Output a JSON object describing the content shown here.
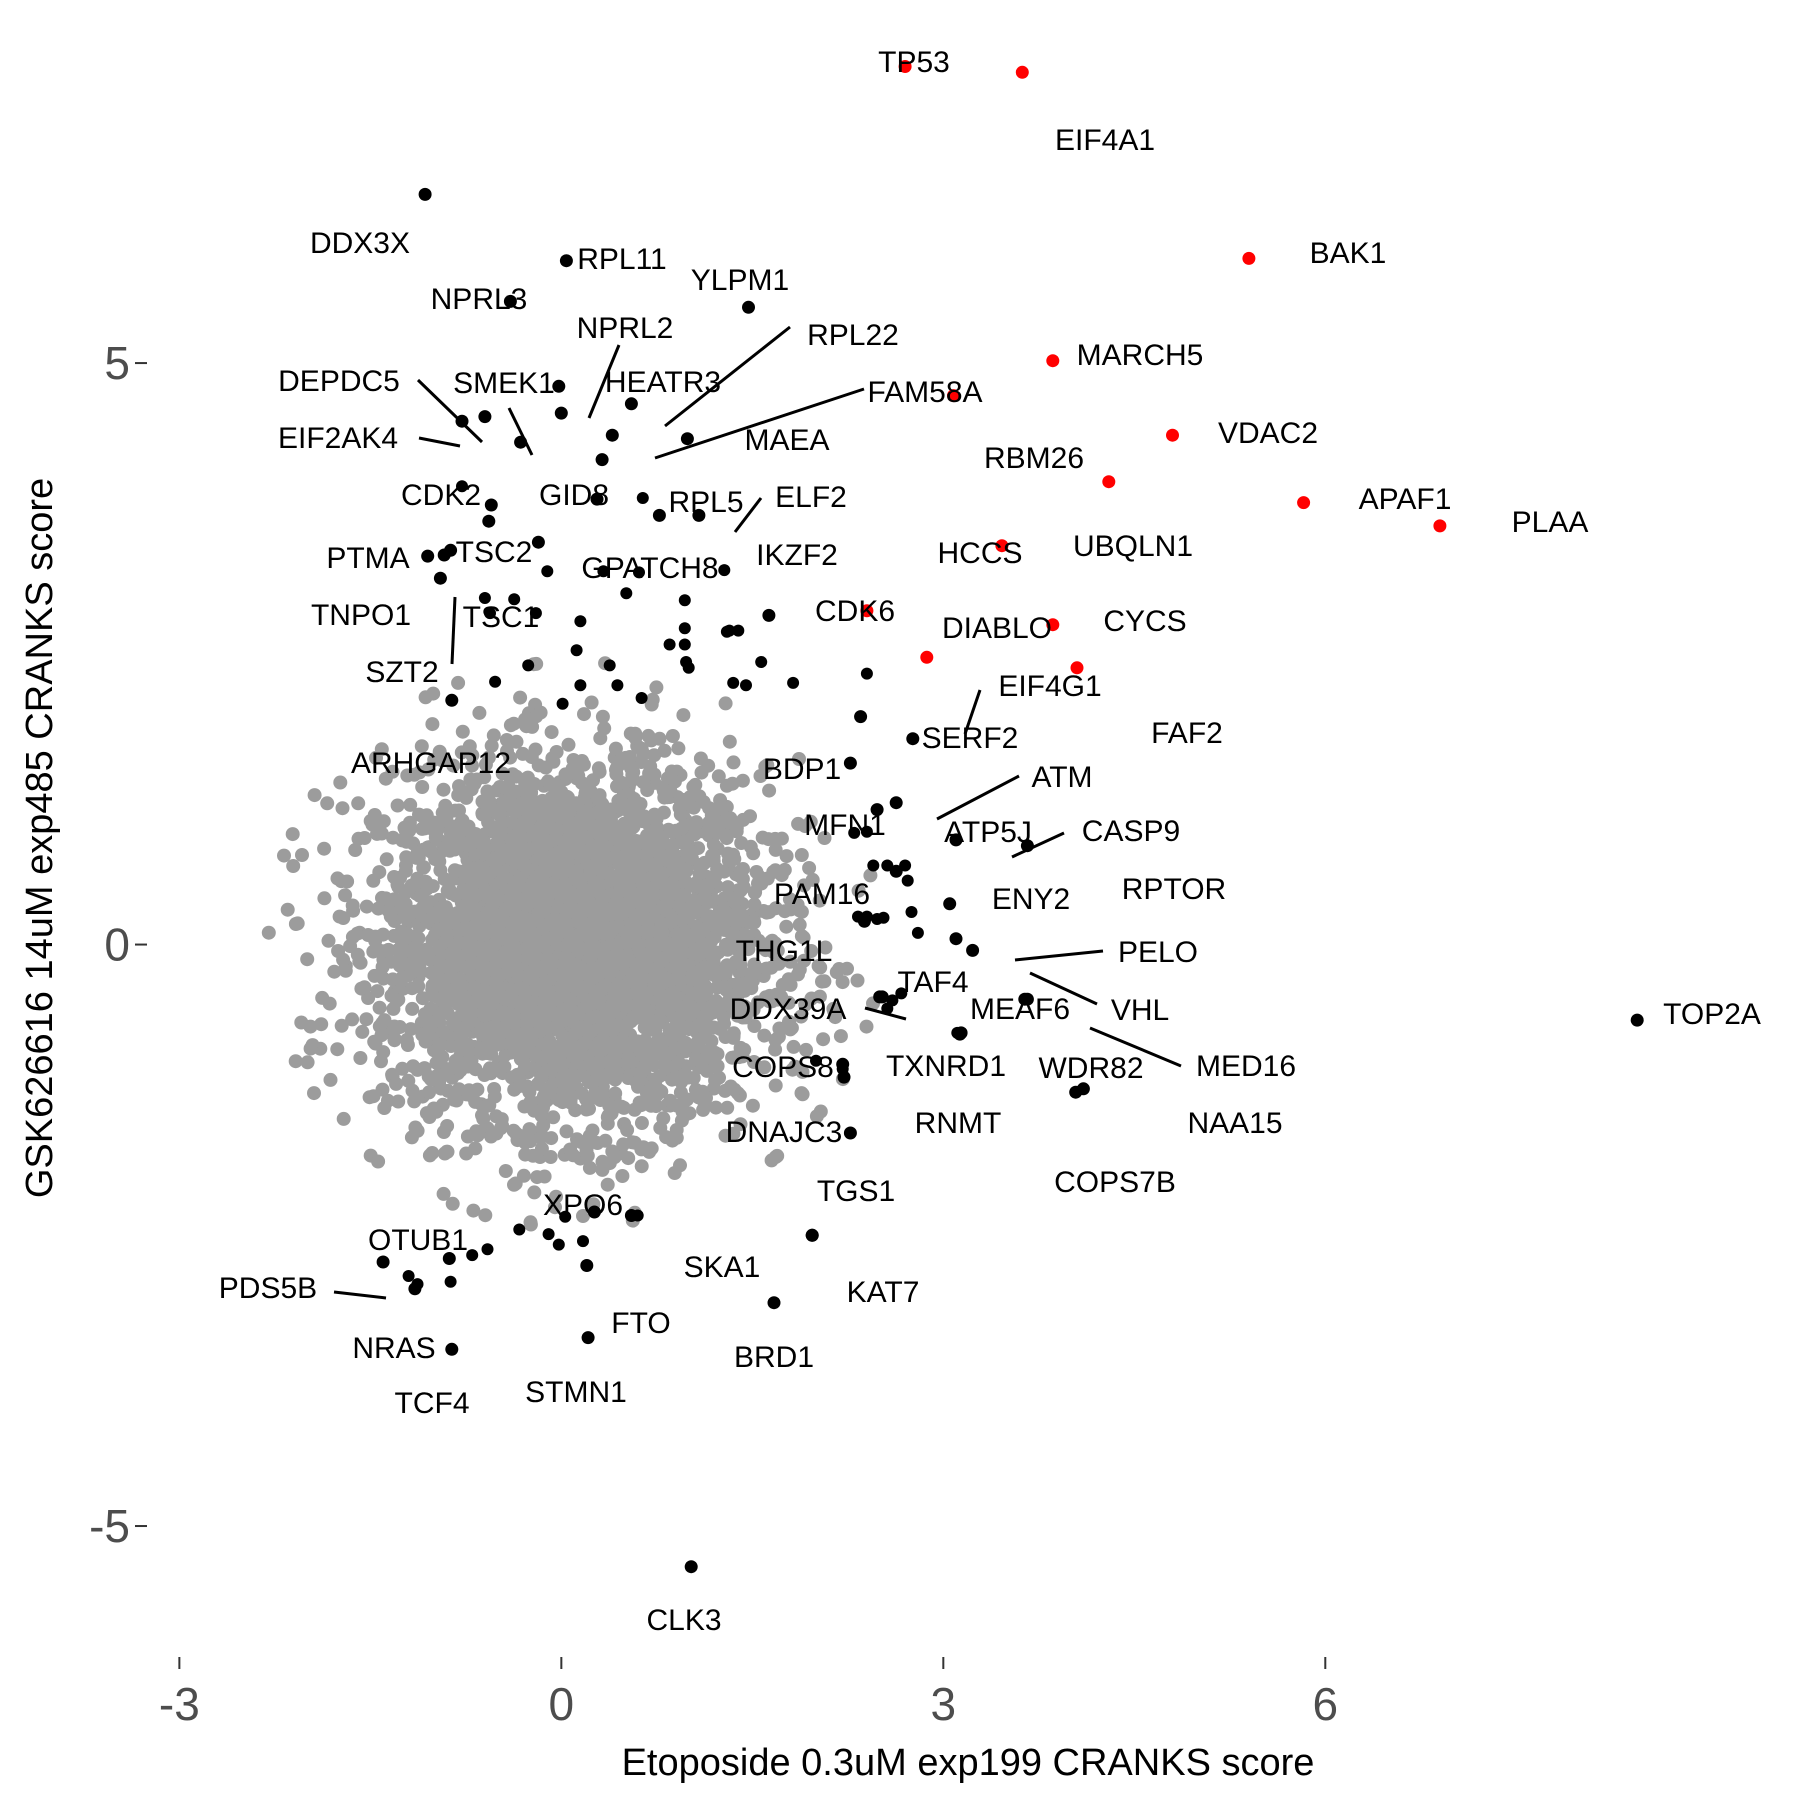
{
  "chart_data": {
    "type": "scatter",
    "title": "",
    "xlabel": "Etoposide 0.3uM exp199 CRANKS score",
    "ylabel": "GSK626616 14uM exp485 CRANKS score",
    "xlim": [
      -3.05,
      9.1
    ],
    "ylim": [
      -5.98,
      7.95
    ],
    "xticks": [
      -3,
      0,
      3,
      6
    ],
    "yticks": [
      -5,
      0,
      5
    ],
    "xtick_labels": [
      "-3",
      "0",
      "3",
      "6"
    ],
    "ytick_labels": [
      "-5",
      "0",
      "5"
    ],
    "grid": false,
    "legend": "none",
    "colors": {
      "background": "#d9d9d9",
      "hit": "#ff0000",
      "labeled": "#000000",
      "axis_text": "#4d4d4d"
    },
    "background_cloud": {
      "count": 4200,
      "color": "#9c9c9c",
      "center": [
        0.1,
        0.0
      ],
      "sd": [
        0.5,
        0.4
      ]
    },
    "points": [
      {
        "gene": "TP53",
        "x": 2.7,
        "y": 7.55,
        "color": "#ff0000"
      },
      {
        "gene": "EIF4A1",
        "x": 3.62,
        "y": 7.5,
        "color": "#ff0000"
      },
      {
        "gene": "BAK1",
        "x": 5.4,
        "y": 5.9,
        "color": "#ff0000"
      },
      {
        "gene": "MARCH5",
        "x": 3.86,
        "y": 5.02,
        "color": "#ff0000"
      },
      {
        "gene": "RBM26",
        "x": 3.08,
        "y": 4.72,
        "color": "#ff0000"
      },
      {
        "gene": "VDAC2",
        "x": 4.8,
        "y": 4.38,
        "color": "#ff0000"
      },
      {
        "gene": "UBQLN1",
        "x": 4.3,
        "y": 3.98,
        "color": "#ff0000"
      },
      {
        "gene": "APAF1",
        "x": 5.83,
        "y": 3.8,
        "color": "#ff0000"
      },
      {
        "gene": "PLAA",
        "x": 6.9,
        "y": 3.6,
        "color": "#ff0000"
      },
      {
        "gene": "HCCS",
        "x": 3.46,
        "y": 3.43,
        "color": "#ff0000"
      },
      {
        "gene": "DIABLO",
        "x": 2.4,
        "y": 2.87,
        "color": "#ff0000"
      },
      {
        "gene": "CYCS",
        "x": 3.86,
        "y": 2.75,
        "color": "#ff0000"
      },
      {
        "gene": "EIF4G1",
        "x": 2.87,
        "y": 2.47,
        "color": "#ff0000"
      },
      {
        "gene": "FAF2",
        "x": 4.05,
        "y": 2.38,
        "color": "#ff0000"
      },
      {
        "gene": "TOP2A",
        "x": 8.45,
        "y": -0.65,
        "color": "#000000"
      },
      {
        "gene": "DDX3X",
        "x": -1.07,
        "y": 6.45,
        "color": "#000000"
      },
      {
        "gene": "RPL11",
        "x": 0.04,
        "y": 5.88,
        "color": "#000000"
      },
      {
        "gene": "NPRL3",
        "x": -0.4,
        "y": 5.53,
        "color": "#000000"
      },
      {
        "gene": "RPL22",
        "x": 1.47,
        "y": 5.48,
        "color": "#000000"
      },
      {
        "gene": "NPRL2",
        "x": -0.02,
        "y": 4.8,
        "color": "#000000"
      },
      {
        "gene": "HEATR3",
        "x": 0.0,
        "y": 4.57,
        "color": "#000000"
      },
      {
        "gene": "YLPM1",
        "x": 0.55,
        "y": 4.65,
        "color": "#000000"
      },
      {
        "gene": "DEPDC5",
        "x": -0.78,
        "y": 4.5,
        "color": "#000000"
      },
      {
        "gene": "EIF2AK4",
        "x": -0.6,
        "y": 4.54,
        "color": "#000000"
      },
      {
        "gene": "FAM58A",
        "x": 0.4,
        "y": 4.38,
        "color": "#000000"
      },
      {
        "gene": "MAEA",
        "x": 0.99,
        "y": 4.35,
        "color": "#000000"
      },
      {
        "gene": "SMEK1",
        "x": -0.32,
        "y": 4.32,
        "color": "#000000"
      },
      {
        "gene": "GID8",
        "x": 0.32,
        "y": 4.17,
        "color": "#000000"
      },
      {
        "gene": "CDK2",
        "x": -0.55,
        "y": 3.78,
        "color": "#000000"
      },
      {
        "gene": "RPL5",
        "x": 0.28,
        "y": 3.83,
        "color": "#000000"
      },
      {
        "gene": "ELF2",
        "x": 1.08,
        "y": 3.69,
        "color": "#000000"
      },
      {
        "gene": "TSC2",
        "x": -0.57,
        "y": 3.64,
        "color": "#000000"
      },
      {
        "gene": "IKZF2",
        "x": 0.77,
        "y": 3.69,
        "color": "#000000"
      },
      {
        "gene": "PTMA",
        "x": -1.05,
        "y": 3.34,
        "color": "#000000"
      },
      {
        "gene": "TNPO1",
        "x": -0.87,
        "y": 3.39,
        "color": "#000000"
      },
      {
        "gene": "GPATCH8",
        "x": -0.18,
        "y": 3.46,
        "color": "#000000"
      },
      {
        "gene": "TSC1",
        "x": -0.92,
        "y": 3.35,
        "color": "#000000"
      },
      {
        "gene": "SZT2",
        "x": -0.95,
        "y": 3.15,
        "color": "#000000"
      },
      {
        "gene": "CDK6",
        "x": 1.63,
        "y": 2.83,
        "color": "#000000"
      },
      {
        "gene": "ARHGAP12",
        "x": -0.86,
        "y": 2.1,
        "color": "#000000"
      },
      {
        "gene": "SERF2",
        "x": 2.35,
        "y": 1.96,
        "color": "#000000"
      },
      {
        "gene": "BDP1",
        "x": 2.76,
        "y": 1.77,
        "color": "#000000"
      },
      {
        "gene": "ATM",
        "x": 2.27,
        "y": 1.56,
        "color": "#000000"
      },
      {
        "gene": "MFN1",
        "x": 2.48,
        "y": 1.16,
        "color": "#000000"
      },
      {
        "gene": "ATP5J",
        "x": 2.63,
        "y": 1.22,
        "color": "#000000"
      },
      {
        "gene": "CASP9",
        "x": 3.1,
        "y": 0.9,
        "color": "#000000"
      },
      {
        "gene": "RPTOR",
        "x": 3.66,
        "y": 0.85,
        "color": "#000000"
      },
      {
        "gene": "PAM16",
        "x": 2.63,
        "y": 0.63,
        "color": "#000000"
      },
      {
        "gene": "ENY2",
        "x": 3.05,
        "y": 0.35,
        "color": "#000000"
      },
      {
        "gene": "THG1L",
        "x": 2.38,
        "y": 0.2,
        "color": "#000000"
      },
      {
        "gene": "PELO",
        "x": 3.1,
        "y": 0.05,
        "color": "#000000"
      },
      {
        "gene": "TAF4",
        "x": 2.52,
        "y": -0.45,
        "color": "#000000"
      },
      {
        "gene": "VHL",
        "x": 3.23,
        "y": -0.05,
        "color": "#000000"
      },
      {
        "gene": "DDX39A",
        "x": 2.5,
        "y": -0.45,
        "color": "#000000"
      },
      {
        "gene": "MEAF6",
        "x": 3.64,
        "y": -0.47,
        "color": "#000000"
      },
      {
        "gene": "MED16",
        "x": 3.66,
        "y": -0.47,
        "color": "#000000"
      },
      {
        "gene": "TXNRD1",
        "x": 3.13,
        "y": -0.77,
        "color": "#000000"
      },
      {
        "gene": "WDR82",
        "x": 3.14,
        "y": -0.76,
        "color": "#000000"
      },
      {
        "gene": "COPS8",
        "x": 2.21,
        "y": -1.03,
        "color": "#000000"
      },
      {
        "gene": "NAA15",
        "x": 4.1,
        "y": -1.24,
        "color": "#000000"
      },
      {
        "gene": "RNMT",
        "x": 2.22,
        "y": -1.14,
        "color": "#000000"
      },
      {
        "gene": "COPS7B",
        "x": 4.04,
        "y": -1.27,
        "color": "#000000"
      },
      {
        "gene": "DNAJC3",
        "x": 2.27,
        "y": -1.62,
        "color": "#000000"
      },
      {
        "gene": "TGS1",
        "x": 1.97,
        "y": -2.5,
        "color": "#000000"
      },
      {
        "gene": "XPO6",
        "x": 0.26,
        "y": -2.3,
        "color": "#000000"
      },
      {
        "gene": "OTUB1",
        "x": -0.88,
        "y": -2.7,
        "color": "#000000"
      },
      {
        "gene": "SKA1",
        "x": 0.55,
        "y": -2.33,
        "color": "#000000"
      },
      {
        "gene": "PDS5B",
        "x": -1.4,
        "y": -2.73,
        "color": "#000000"
      },
      {
        "gene": "KAT7",
        "x": 1.97,
        "y": -2.5,
        "color": "#000000"
      },
      {
        "gene": "FTO",
        "x": 0.2,
        "y": -2.76,
        "color": "#000000"
      },
      {
        "gene": "NRAS",
        "x": -1.15,
        "y": -2.96,
        "color": "#000000"
      },
      {
        "gene": "BRD1",
        "x": 1.67,
        "y": -3.08,
        "color": "#000000"
      },
      {
        "gene": "STMN1",
        "x": 0.21,
        "y": -3.38,
        "color": "#000000"
      },
      {
        "gene": "TCF4",
        "x": -0.86,
        "y": -3.48,
        "color": "#000000"
      },
      {
        "gene": "CLK3",
        "x": 1.02,
        "y": -5.35,
        "color": "#000000"
      }
    ],
    "extra_black_points": [
      [
        -0.78,
        3.94
      ],
      [
        0.64,
        3.84
      ],
      [
        1.28,
        3.22
      ],
      [
        -0.11,
        3.21
      ],
      [
        0.33,
        3.21
      ],
      [
        0.61,
        3.2
      ],
      [
        0.51,
        3.02
      ],
      [
        0.97,
        2.96
      ],
      [
        1.3,
        2.69
      ],
      [
        0.97,
        2.72
      ],
      [
        0.97,
        2.58
      ],
      [
        0.85,
        2.58
      ],
      [
        0.98,
        2.43
      ],
      [
        1.0,
        2.38
      ],
      [
        1.32,
        2.7
      ],
      [
        1.39,
        2.7
      ],
      [
        0.15,
        2.78
      ],
      [
        0.12,
        2.53
      ],
      [
        0.38,
        2.4
      ],
      [
        -0.26,
        2.4
      ],
      [
        -0.56,
        2.85
      ],
      [
        -0.6,
        2.98
      ],
      [
        -0.37,
        2.97
      ],
      [
        -0.2,
        2.85
      ],
      [
        -0.52,
        2.26
      ],
      [
        0.15,
        2.23
      ],
      [
        0.44,
        2.23
      ],
      [
        0.63,
        2.12
      ],
      [
        1.35,
        2.25
      ],
      [
        1.45,
        2.23
      ],
      [
        1.57,
        2.43
      ],
      [
        1.82,
        2.25
      ],
      [
        2.4,
        2.33
      ],
      [
        0.01,
        2.07
      ],
      [
        2.3,
        0.96
      ],
      [
        2.4,
        0.97
      ],
      [
        2.45,
        0.68
      ],
      [
        2.56,
        0.68
      ],
      [
        2.7,
        0.68
      ],
      [
        2.72,
        0.55
      ],
      [
        2.33,
        0.24
      ],
      [
        2.4,
        0.24
      ],
      [
        2.48,
        0.22
      ],
      [
        2.53,
        0.23
      ],
      [
        2.75,
        0.28
      ],
      [
        2.8,
        0.1
      ],
      [
        2.6,
        -0.48
      ],
      [
        2.56,
        -0.55
      ],
      [
        2.67,
        -0.42
      ],
      [
        3.11,
        -0.76
      ],
      [
        2.21,
        -1.07
      ],
      [
        2.0,
        -1.0
      ],
      [
        2.27,
        -1.62
      ],
      [
        0.03,
        -2.34
      ],
      [
        -0.58,
        -2.62
      ],
      [
        -0.7,
        -2.67
      ],
      [
        -0.87,
        -2.9
      ],
      [
        -1.13,
        -2.92
      ],
      [
        -1.2,
        -2.85
      ],
      [
        -0.33,
        -2.45
      ],
      [
        -0.1,
        -2.49
      ],
      [
        -0.02,
        -2.58
      ],
      [
        0.17,
        -2.55
      ],
      [
        0.55,
        -2.33
      ],
      [
        0.6,
        -2.33
      ]
    ]
  }
}
